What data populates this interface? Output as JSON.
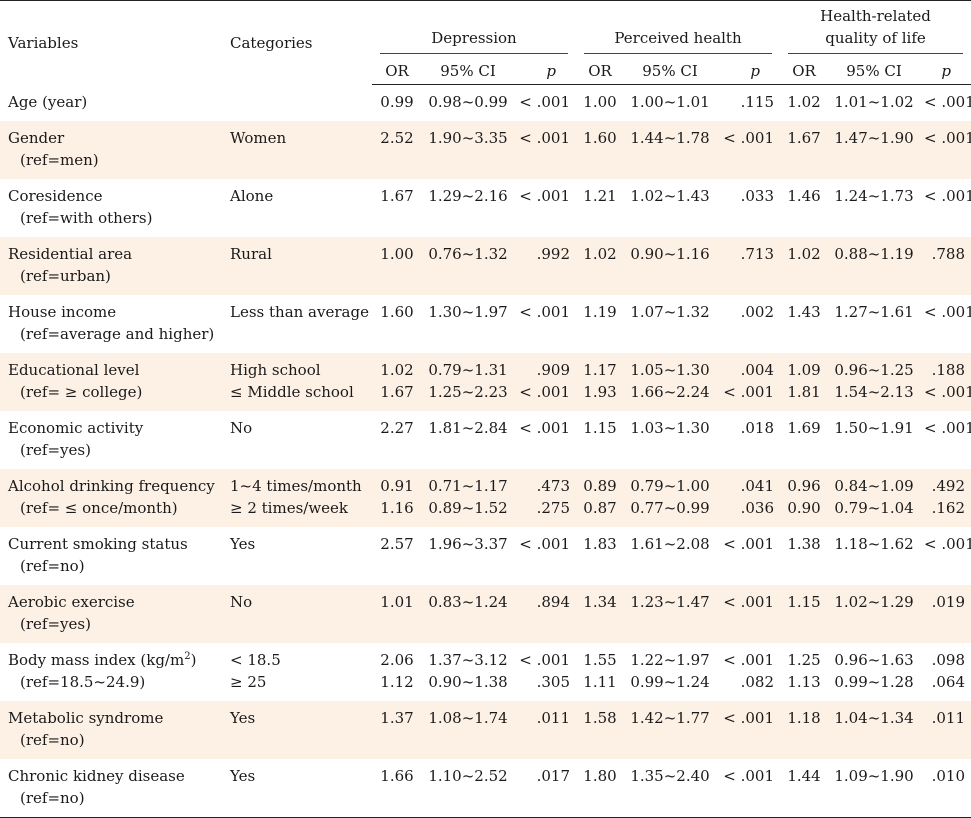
{
  "headers": {
    "variables": "Variables",
    "categories": "Categories",
    "groups": [
      "Depression",
      "Perceived health",
      "Health-related quality of life"
    ],
    "group3_line1": "Health-related",
    "group3_line2": "quality of life",
    "sub": [
      "OR",
      "95% CI",
      "p"
    ]
  },
  "rows": [
    {
      "var": "Age (year)",
      "ref": "",
      "cats": [
        ""
      ],
      "dep": [
        [
          "0.99",
          "0.98~0.99",
          "< .001"
        ]
      ],
      "ph": [
        [
          "1.00",
          "1.00~1.01",
          ".115"
        ]
      ],
      "hq": [
        [
          "1.02",
          "1.01~1.02",
          "< .001"
        ]
      ]
    },
    {
      "var": "Gender",
      "ref": "(ref=men)",
      "cats": [
        "Women"
      ],
      "dep": [
        [
          "2.52",
          "1.90~3.35",
          "< .001"
        ]
      ],
      "ph": [
        [
          "1.60",
          "1.44~1.78",
          "< .001"
        ]
      ],
      "hq": [
        [
          "1.67",
          "1.47~1.90",
          "< .001"
        ]
      ]
    },
    {
      "var": "Coresidence",
      "ref": "(ref=with others)",
      "cats": [
        "Alone"
      ],
      "dep": [
        [
          "1.67",
          "1.29~2.16",
          "< .001"
        ]
      ],
      "ph": [
        [
          "1.21",
          "1.02~1.43",
          ".033"
        ]
      ],
      "hq": [
        [
          "1.46",
          "1.24~1.73",
          "< .001"
        ]
      ]
    },
    {
      "var": "Residential area",
      "ref": "(ref=urban)",
      "cats": [
        "Rural"
      ],
      "dep": [
        [
          "1.00",
          "0.76~1.32",
          ".992"
        ]
      ],
      "ph": [
        [
          "1.02",
          "0.90~1.16",
          ".713"
        ]
      ],
      "hq": [
        [
          "1.02",
          "0.88~1.19",
          ".788"
        ]
      ]
    },
    {
      "var": "House income",
      "ref": "(ref=average and higher)",
      "cats": [
        "Less than average"
      ],
      "dep": [
        [
          "1.60",
          "1.30~1.97",
          "< .001"
        ]
      ],
      "ph": [
        [
          "1.19",
          "1.07~1.32",
          ".002"
        ]
      ],
      "hq": [
        [
          "1.43",
          "1.27~1.61",
          "< .001"
        ]
      ]
    },
    {
      "var": "Educational level",
      "ref": "(ref= ≥ college)",
      "cats": [
        "High school",
        "≤ Middle school"
      ],
      "dep": [
        [
          "1.02",
          "0.79~1.31",
          ".909"
        ],
        [
          "1.67",
          "1.25~2.23",
          "< .001"
        ]
      ],
      "ph": [
        [
          "1.17",
          "1.05~1.30",
          ".004"
        ],
        [
          "1.93",
          "1.66~2.24",
          "< .001"
        ]
      ],
      "hq": [
        [
          "1.09",
          "0.96~1.25",
          ".188"
        ],
        [
          "1.81",
          "1.54~2.13",
          "< .001"
        ]
      ]
    },
    {
      "var": "Economic activity",
      "ref": "(ref=yes)",
      "cats": [
        "No"
      ],
      "dep": [
        [
          "2.27",
          "1.81~2.84",
          "< .001"
        ]
      ],
      "ph": [
        [
          "1.15",
          "1.03~1.30",
          ".018"
        ]
      ],
      "hq": [
        [
          "1.69",
          "1.50~1.91",
          "< .001"
        ]
      ]
    },
    {
      "var": "Alcohol drinking frequency",
      "ref": "(ref= ≤ once/month)",
      "cats": [
        "1~4 times/month",
        "≥ 2 times/week"
      ],
      "dep": [
        [
          "0.91",
          "0.71~1.17",
          ".473"
        ],
        [
          "1.16",
          "0.89~1.52",
          ".275"
        ]
      ],
      "ph": [
        [
          "0.89",
          "0.79~1.00",
          ".041"
        ],
        [
          "0.87",
          "0.77~0.99",
          ".036"
        ]
      ],
      "hq": [
        [
          "0.96",
          "0.84~1.09",
          ".492"
        ],
        [
          "0.90",
          "0.79~1.04",
          ".162"
        ]
      ]
    },
    {
      "var": "Current smoking status",
      "ref": "(ref=no)",
      "cats": [
        "Yes"
      ],
      "dep": [
        [
          "2.57",
          "1.96~3.37",
          "< .001"
        ]
      ],
      "ph": [
        [
          "1.83",
          "1.61~2.08",
          "< .001"
        ]
      ],
      "hq": [
        [
          "1.38",
          "1.18~1.62",
          "< .001"
        ]
      ]
    },
    {
      "var": "Aerobic exercise",
      "ref": "(ref=yes)",
      "cats": [
        "No"
      ],
      "dep": [
        [
          "1.01",
          "0.83~1.24",
          ".894"
        ]
      ],
      "ph": [
        [
          "1.34",
          "1.23~1.47",
          "< .001"
        ]
      ],
      "hq": [
        [
          "1.15",
          "1.02~1.29",
          ".019"
        ]
      ]
    },
    {
      "var": "Body mass index (kg/m",
      "var_sup": "2",
      "var_end": ")",
      "ref": "(ref=18.5~24.9)",
      "cats": [
        "< 18.5",
        "≥ 25"
      ],
      "dep": [
        [
          "2.06",
          "1.37~3.12",
          "< .001"
        ],
        [
          "1.12",
          "0.90~1.38",
          ".305"
        ]
      ],
      "ph": [
        [
          "1.55",
          "1.22~1.97",
          "< .001"
        ],
        [
          "1.11",
          "0.99~1.24",
          ".082"
        ]
      ],
      "hq": [
        [
          "1.25",
          "0.96~1.63",
          ".098"
        ],
        [
          "1.13",
          "0.99~1.28",
          ".064"
        ]
      ]
    },
    {
      "var": "Metabolic syndrome",
      "ref": "(ref=no)",
      "cats": [
        "Yes"
      ],
      "dep": [
        [
          "1.37",
          "1.08~1.74",
          ".011"
        ]
      ],
      "ph": [
        [
          "1.58",
          "1.42~1.77",
          "< .001"
        ]
      ],
      "hq": [
        [
          "1.18",
          "1.04~1.34",
          ".011"
        ]
      ]
    },
    {
      "var": "Chronic kidney disease",
      "ref": "(ref=no)",
      "cats": [
        "Yes"
      ],
      "dep": [
        [
          "1.66",
          "1.10~2.52",
          ".017"
        ]
      ],
      "ph": [
        [
          "1.80",
          "1.35~2.40",
          "< .001"
        ]
      ],
      "hq": [
        [
          "1.44",
          "1.09~1.90",
          ".010"
        ]
      ]
    }
  ]
}
